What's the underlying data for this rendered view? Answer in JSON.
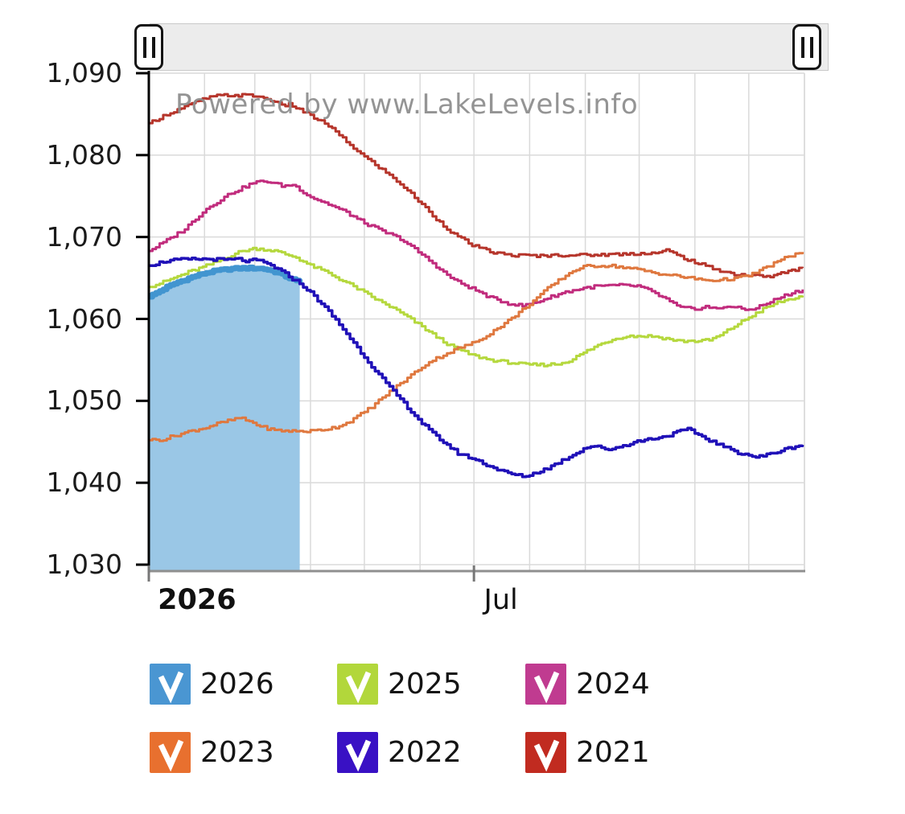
{
  "watermark": "Powered by www.LakeLevels.info",
  "slider": {
    "left_handle": "range-start",
    "right_handle": "range-end"
  },
  "legend": {
    "items": [
      {
        "label": "2026",
        "color": "#4a96d2",
        "checked": true
      },
      {
        "label": "2025",
        "color": "#b2d73b",
        "checked": true
      },
      {
        "label": "2024",
        "color": "#c03b90",
        "checked": true
      },
      {
        "label": "2023",
        "color": "#e8702f",
        "checked": true
      },
      {
        "label": "2022",
        "color": "#3911c4",
        "checked": true
      },
      {
        "label": "2021",
        "color": "#c12b20",
        "checked": true
      }
    ]
  },
  "chart_data": {
    "type": "line",
    "title": "",
    "watermark": "Powered by www.LakeLevels.info",
    "grid": true,
    "x_axis": {
      "unit": "day-of-year",
      "range_days": [
        0,
        365
      ],
      "month_start_days": [
        31,
        59,
        90,
        120,
        151,
        181,
        212,
        243,
        273,
        304,
        334,
        365
      ],
      "tick_marks_days": [
        0,
        181
      ],
      "tick_labels": [
        {
          "label": "2026",
          "day": 5,
          "anchor": "start",
          "bold": true
        },
        {
          "label": "Jul",
          "day": 196,
          "anchor": "middle",
          "bold": false
        }
      ]
    },
    "y_axis": {
      "min": 1030,
      "max": 1090,
      "step": 10,
      "tick_labels": [
        "1,090",
        "1,080",
        "1,070",
        "1,060",
        "1,050",
        "1,040",
        "1,030"
      ]
    },
    "colors": {
      "grid": "#dadada",
      "y_axis_line": "#000000",
      "x_axis_line": "#8f8f8f"
    },
    "draw_order": [
      "2026-area",
      "2026",
      "2025",
      "2024",
      "2021",
      "2023",
      "2022"
    ],
    "series": [
      {
        "name": "2026",
        "color": "#4295d0",
        "width": 7,
        "area_fill": "#9ac7e6",
        "noise": 0.12,
        "points": [
          [
            0,
            1062.7
          ],
          [
            5,
            1063.3
          ],
          [
            10,
            1063.9
          ],
          [
            15,
            1064.4
          ],
          [
            20,
            1064.8
          ],
          [
            25,
            1065.2
          ],
          [
            31,
            1065.6
          ],
          [
            38,
            1065.9
          ],
          [
            45,
            1066.1
          ],
          [
            52,
            1066.2
          ],
          [
            59,
            1066.2
          ],
          [
            64,
            1066.1
          ],
          [
            68,
            1065.9
          ],
          [
            72,
            1065.6
          ],
          [
            76,
            1065.2
          ],
          [
            80,
            1064.8
          ],
          [
            85,
            1064.3
          ]
        ]
      },
      {
        "name": "2025",
        "color": "#b5d83e",
        "width": 3,
        "noise": 0.18,
        "points": [
          [
            0,
            1063.9
          ],
          [
            8,
            1064.5
          ],
          [
            15,
            1065.1
          ],
          [
            23,
            1065.8
          ],
          [
            31,
            1066.4
          ],
          [
            40,
            1067.2
          ],
          [
            48,
            1068.0
          ],
          [
            54,
            1068.4
          ],
          [
            59,
            1068.6
          ],
          [
            64,
            1068.5
          ],
          [
            70,
            1068.3
          ],
          [
            76,
            1067.9
          ],
          [
            82,
            1067.5
          ],
          [
            90,
            1066.5
          ],
          [
            98,
            1065.8
          ],
          [
            105,
            1065.0
          ],
          [
            112,
            1064.2
          ],
          [
            120,
            1063.2
          ],
          [
            128,
            1062.2
          ],
          [
            136,
            1061.3
          ],
          [
            144,
            1060.2
          ],
          [
            151,
            1059.2
          ],
          [
            160,
            1057.8
          ],
          [
            168,
            1056.7
          ],
          [
            175,
            1056.0
          ],
          [
            181,
            1055.5
          ],
          [
            190,
            1055.0
          ],
          [
            200,
            1054.7
          ],
          [
            210,
            1054.4
          ],
          [
            220,
            1054.4
          ],
          [
            228,
            1054.5
          ],
          [
            235,
            1055.0
          ],
          [
            243,
            1056.0
          ],
          [
            250,
            1056.8
          ],
          [
            258,
            1057.5
          ],
          [
            265,
            1057.9
          ],
          [
            273,
            1057.9
          ],
          [
            280,
            1057.9
          ],
          [
            288,
            1057.6
          ],
          [
            295,
            1057.3
          ],
          [
            304,
            1057.3
          ],
          [
            312,
            1057.4
          ],
          [
            318,
            1058.0
          ],
          [
            325,
            1059.0
          ],
          [
            334,
            1060.2
          ],
          [
            342,
            1061.2
          ],
          [
            350,
            1062.0
          ],
          [
            358,
            1062.5
          ],
          [
            365,
            1062.7
          ]
        ]
      },
      {
        "name": "2024",
        "color": "#c12c7d",
        "width": 3,
        "noise": 0.18,
        "points": [
          [
            0,
            1068.3
          ],
          [
            10,
            1069.6
          ],
          [
            20,
            1071.0
          ],
          [
            31,
            1073.3
          ],
          [
            45,
            1075.3
          ],
          [
            59,
            1076.7
          ],
          [
            66,
            1076.8
          ],
          [
            75,
            1076.2
          ],
          [
            80,
            1076.4
          ],
          [
            90,
            1074.9
          ],
          [
            100,
            1074.0
          ],
          [
            110,
            1073.0
          ],
          [
            120,
            1071.7
          ],
          [
            130,
            1070.7
          ],
          [
            140,
            1069.8
          ],
          [
            151,
            1068.0
          ],
          [
            158,
            1066.8
          ],
          [
            165,
            1065.5
          ],
          [
            172,
            1064.5
          ],
          [
            181,
            1063.6
          ],
          [
            190,
            1062.6
          ],
          [
            200,
            1061.9
          ],
          [
            208,
            1061.6
          ],
          [
            215,
            1062.0
          ],
          [
            225,
            1062.8
          ],
          [
            232,
            1063.3
          ],
          [
            243,
            1063.8
          ],
          [
            250,
            1064.0
          ],
          [
            262,
            1064.1
          ],
          [
            273,
            1064.0
          ],
          [
            280,
            1063.3
          ],
          [
            288,
            1062.4
          ],
          [
            295,
            1061.4
          ],
          [
            304,
            1061.2
          ],
          [
            310,
            1061.5
          ],
          [
            316,
            1061.2
          ],
          [
            322,
            1061.6
          ],
          [
            328,
            1061.3
          ],
          [
            334,
            1061.1
          ],
          [
            342,
            1061.7
          ],
          [
            350,
            1062.5
          ],
          [
            358,
            1063.2
          ],
          [
            365,
            1063.6
          ]
        ]
      },
      {
        "name": "2023",
        "color": "#df783f",
        "width": 3,
        "noise": 0.18,
        "points": [
          [
            0,
            1045.2
          ],
          [
            8,
            1045.3
          ],
          [
            15,
            1045.8
          ],
          [
            23,
            1046.3
          ],
          [
            31,
            1046.7
          ],
          [
            38,
            1047.2
          ],
          [
            45,
            1047.6
          ],
          [
            50,
            1047.9
          ],
          [
            56,
            1047.5
          ],
          [
            63,
            1046.8
          ],
          [
            70,
            1046.4
          ],
          [
            80,
            1046.3
          ],
          [
            90,
            1046.3
          ],
          [
            97,
            1046.5
          ],
          [
            104,
            1046.8
          ],
          [
            110,
            1047.3
          ],
          [
            117,
            1048.2
          ],
          [
            124,
            1049.3
          ],
          [
            130,
            1050.4
          ],
          [
            137,
            1051.6
          ],
          [
            144,
            1052.8
          ],
          [
            151,
            1054.0
          ],
          [
            158,
            1055.0
          ],
          [
            165,
            1055.7
          ],
          [
            172,
            1056.4
          ],
          [
            181,
            1057.1
          ],
          [
            188,
            1058.0
          ],
          [
            195,
            1059.0
          ],
          [
            202,
            1060.1
          ],
          [
            209,
            1061.3
          ],
          [
            216,
            1062.6
          ],
          [
            223,
            1063.9
          ],
          [
            230,
            1065.0
          ],
          [
            237,
            1066.0
          ],
          [
            243,
            1066.4
          ],
          [
            250,
            1066.5
          ],
          [
            257,
            1066.5
          ],
          [
            264,
            1066.3
          ],
          [
            273,
            1066.0
          ],
          [
            280,
            1065.7
          ],
          [
            288,
            1065.4
          ],
          [
            295,
            1065.2
          ],
          [
            304,
            1064.9
          ],
          [
            312,
            1064.7
          ],
          [
            320,
            1064.8
          ],
          [
            328,
            1065.0
          ],
          [
            334,
            1065.3
          ],
          [
            341,
            1066.0
          ],
          [
            348,
            1066.8
          ],
          [
            356,
            1067.6
          ],
          [
            365,
            1068.3
          ]
        ]
      },
      {
        "name": "2022",
        "color": "#2011b8",
        "width": 3.5,
        "noise": 0.18,
        "points": [
          [
            0,
            1066.5
          ],
          [
            8,
            1067.0
          ],
          [
            15,
            1067.2
          ],
          [
            25,
            1067.3
          ],
          [
            35,
            1067.3
          ],
          [
            42,
            1067.2
          ],
          [
            50,
            1067.3
          ],
          [
            55,
            1067.0
          ],
          [
            59,
            1067.2
          ],
          [
            64,
            1066.9
          ],
          [
            70,
            1066.3
          ],
          [
            76,
            1065.5
          ],
          [
            82,
            1064.6
          ],
          [
            86,
            1064.0
          ],
          [
            90,
            1063.2
          ],
          [
            95,
            1062.1
          ],
          [
            100,
            1060.9
          ],
          [
            105,
            1059.6
          ],
          [
            110,
            1058.2
          ],
          [
            116,
            1056.5
          ],
          [
            122,
            1054.8
          ],
          [
            128,
            1053.2
          ],
          [
            134,
            1051.6
          ],
          [
            140,
            1050.2
          ],
          [
            146,
            1048.7
          ],
          [
            151,
            1047.5
          ],
          [
            158,
            1046.0
          ],
          [
            165,
            1044.8
          ],
          [
            172,
            1043.6
          ],
          [
            181,
            1042.9
          ],
          [
            190,
            1042.0
          ],
          [
            198,
            1041.3
          ],
          [
            205,
            1040.9
          ],
          [
            210,
            1040.8
          ],
          [
            215,
            1041.2
          ],
          [
            222,
            1041.8
          ],
          [
            228,
            1042.5
          ],
          [
            235,
            1043.3
          ],
          [
            243,
            1044.3
          ],
          [
            248,
            1044.5
          ],
          [
            252,
            1044.2
          ],
          [
            256,
            1044.1
          ],
          [
            262,
            1044.4
          ],
          [
            268,
            1044.8
          ],
          [
            273,
            1045.1
          ],
          [
            280,
            1045.4
          ],
          [
            286,
            1045.6
          ],
          [
            292,
            1046.0
          ],
          [
            297,
            1046.4
          ],
          [
            300,
            1046.5
          ],
          [
            305,
            1046.0
          ],
          [
            310,
            1045.4
          ],
          [
            316,
            1044.8
          ],
          [
            322,
            1044.2
          ],
          [
            328,
            1043.7
          ],
          [
            334,
            1043.4
          ],
          [
            338,
            1043.1
          ],
          [
            344,
            1043.4
          ],
          [
            350,
            1043.8
          ],
          [
            356,
            1044.2
          ],
          [
            361,
            1044.5
          ],
          [
            365,
            1044.7
          ]
        ]
      },
      {
        "name": "2021",
        "color": "#b6352b",
        "width": 3,
        "noise": 0.18,
        "points": [
          [
            0,
            1083.9
          ],
          [
            10,
            1085.0
          ],
          [
            20,
            1085.9
          ],
          [
            31,
            1086.9
          ],
          [
            40,
            1087.3
          ],
          [
            55,
            1087.3
          ],
          [
            60,
            1087.2
          ],
          [
            70,
            1086.6
          ],
          [
            74,
            1086.0
          ],
          [
            78,
            1086.2
          ],
          [
            82,
            1085.8
          ],
          [
            90,
            1084.8
          ],
          [
            100,
            1083.6
          ],
          [
            110,
            1081.6
          ],
          [
            120,
            1079.8
          ],
          [
            130,
            1078.2
          ],
          [
            140,
            1076.5
          ],
          [
            151,
            1074.2
          ],
          [
            160,
            1072.2
          ],
          [
            170,
            1070.3
          ],
          [
            181,
            1068.9
          ],
          [
            190,
            1068.2
          ],
          [
            200,
            1067.8
          ],
          [
            215,
            1067.7
          ],
          [
            230,
            1067.8
          ],
          [
            245,
            1067.8
          ],
          [
            260,
            1067.9
          ],
          [
            273,
            1068.0
          ],
          [
            285,
            1068.1
          ],
          [
            288,
            1068.4
          ],
          [
            295,
            1067.7
          ],
          [
            304,
            1066.9
          ],
          [
            315,
            1066.1
          ],
          [
            325,
            1065.5
          ],
          [
            334,
            1065.3
          ],
          [
            346,
            1065.2
          ],
          [
            356,
            1065.8
          ],
          [
            365,
            1066.3
          ]
        ]
      }
    ]
  }
}
